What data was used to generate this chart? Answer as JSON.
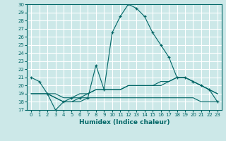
{
  "xlabel": "Humidex (Indice chaleur)",
  "bg_color": "#cce8e8",
  "grid_color": "#ffffff",
  "line_color": "#006666",
  "xlim": [
    -0.5,
    23.5
  ],
  "ylim": [
    17,
    30
  ],
  "xticks": [
    0,
    1,
    2,
    3,
    4,
    5,
    6,
    7,
    8,
    9,
    10,
    11,
    12,
    13,
    14,
    15,
    16,
    17,
    18,
    19,
    20,
    21,
    22,
    23
  ],
  "yticks": [
    17,
    18,
    19,
    20,
    21,
    22,
    23,
    24,
    25,
    26,
    27,
    28,
    29,
    30
  ],
  "series": [
    {
      "x": [
        0,
        1,
        2,
        3,
        4,
        5,
        6,
        7,
        8,
        9,
        10,
        11,
        12,
        13,
        14,
        15,
        16,
        17,
        18,
        19,
        20,
        21,
        22,
        23
      ],
      "y": [
        21.0,
        20.5,
        19.0,
        17.0,
        18.0,
        18.5,
        18.5,
        18.5,
        22.5,
        19.5,
        26.5,
        28.5,
        30.0,
        29.5,
        28.5,
        26.5,
        25.0,
        23.5,
        21.0,
        21.0,
        20.5,
        20.0,
        19.5,
        18.0
      ],
      "marker": "+"
    },
    {
      "x": [
        0,
        1,
        2,
        3,
        4,
        5,
        6,
        7,
        8,
        9,
        10,
        11,
        12,
        13,
        14,
        15,
        16,
        17,
        18,
        19,
        20,
        21,
        22,
        23
      ],
      "y": [
        19.0,
        19.0,
        19.0,
        19.0,
        18.5,
        18.5,
        19.0,
        19.0,
        19.5,
        19.5,
        19.5,
        19.5,
        20.0,
        20.0,
        20.0,
        20.0,
        20.0,
        20.5,
        21.0,
        21.0,
        20.5,
        20.0,
        19.5,
        19.0
      ],
      "marker": null
    },
    {
      "x": [
        0,
        1,
        2,
        3,
        4,
        5,
        6,
        7,
        8,
        9,
        10,
        11,
        12,
        13,
        14,
        15,
        16,
        17,
        18,
        19,
        20,
        21,
        22,
        23
      ],
      "y": [
        19.0,
        19.0,
        19.0,
        18.5,
        18.0,
        18.0,
        18.0,
        18.5,
        18.5,
        18.5,
        18.5,
        18.5,
        18.5,
        18.5,
        18.5,
        18.5,
        18.5,
        18.5,
        18.5,
        18.5,
        18.5,
        18.0,
        18.0,
        18.0
      ],
      "marker": null
    },
    {
      "x": [
        2,
        3,
        4,
        5,
        6,
        7,
        8,
        9,
        10,
        11,
        12,
        13,
        14,
        15,
        16,
        17,
        18,
        19,
        20,
        21,
        22,
        23
      ],
      "y": [
        19.0,
        18.5,
        18.0,
        18.0,
        18.5,
        19.0,
        19.5,
        19.5,
        19.5,
        19.5,
        20.0,
        20.0,
        20.0,
        20.0,
        20.5,
        20.5,
        21.0,
        21.0,
        20.5,
        20.0,
        19.5,
        19.0
      ],
      "marker": null
    }
  ]
}
